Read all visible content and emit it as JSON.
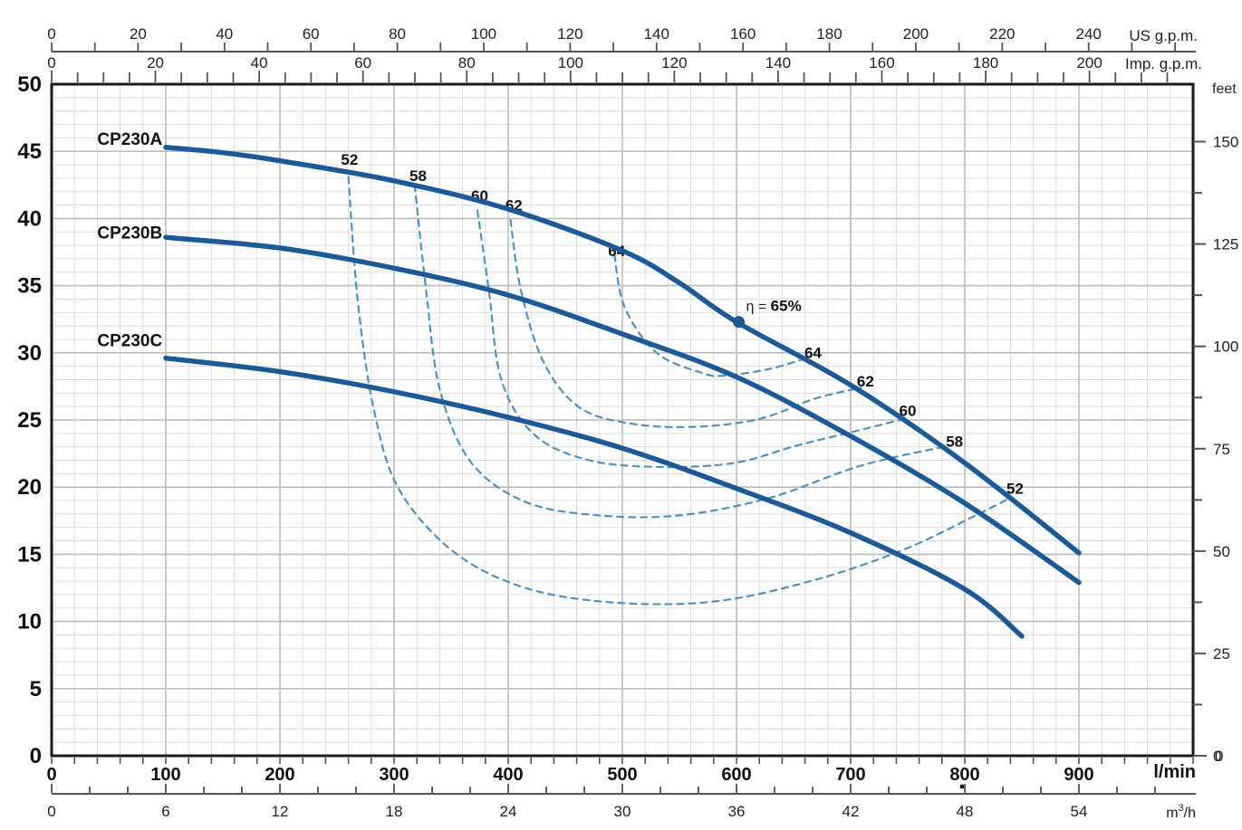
{
  "chart_data": {
    "type": "line",
    "description": "Pump performance curves: head vs flow with iso-efficiency contours",
    "x_axes": {
      "us_gpm": {
        "unit_label": "US g.p.m.",
        "tick_labels": [
          0,
          20,
          40,
          60,
          80,
          100,
          120,
          140,
          160,
          180,
          200,
          220,
          240
        ],
        "minor_step": 10
      },
      "imp_gpm": {
        "unit_label": "Imp. g.p.m.",
        "tick_labels": [
          0,
          20,
          40,
          60,
          80,
          100,
          120,
          140,
          160,
          180,
          200
        ],
        "minor_step": 5
      },
      "l_min": {
        "unit_label": "l/min",
        "tick_labels": [
          0,
          100,
          200,
          300,
          400,
          500,
          600,
          700,
          800,
          900
        ],
        "minor_step": 20,
        "range": [
          0,
          1000
        ]
      },
      "m3_h": {
        "unit_label_parts": [
          "m",
          "3",
          "/h"
        ],
        "tick_labels": [
          0,
          6,
          12,
          18,
          24,
          30,
          36,
          42,
          48,
          54
        ],
        "minor_step": 2
      }
    },
    "y_axes": {
      "head_m": {
        "tick_labels": [
          50,
          45,
          40,
          35,
          30,
          25,
          20,
          15,
          10,
          5,
          0
        ],
        "range": [
          0,
          50
        ]
      },
      "feet": {
        "unit_label": "feet",
        "tick_labels": [
          150,
          125,
          100,
          75,
          50,
          25,
          0
        ],
        "minor_step": 12.5
      }
    },
    "series": [
      {
        "name": "CP230A",
        "label_anchor_qh": [
          97,
          45.5
        ],
        "points": [
          [
            100,
            45.3
          ],
          [
            150,
            44.9
          ],
          [
            200,
            44.3
          ],
          [
            300,
            42.8
          ],
          [
            400,
            40.7
          ],
          [
            500,
            37.6
          ],
          [
            550,
            35.2
          ],
          [
            600,
            32.3
          ],
          [
            700,
            27.6
          ],
          [
            800,
            21.8
          ],
          [
            900,
            15.1
          ]
        ]
      },
      {
        "name": "CP230B",
        "label_anchor_qh": [
          97,
          38.5
        ],
        "points": [
          [
            100,
            38.6
          ],
          [
            200,
            37.8
          ],
          [
            300,
            36.3
          ],
          [
            400,
            34.3
          ],
          [
            500,
            31.4
          ],
          [
            600,
            28.2
          ],
          [
            700,
            23.8
          ],
          [
            800,
            18.8
          ],
          [
            900,
            12.9
          ]
        ]
      },
      {
        "name": "CP230C",
        "label_anchor_qh": [
          97,
          30.5
        ],
        "points": [
          [
            100,
            29.6
          ],
          [
            200,
            28.6
          ],
          [
            300,
            27.1
          ],
          [
            400,
            25.2
          ],
          [
            500,
            22.9
          ],
          [
            600,
            19.9
          ],
          [
            700,
            16.6
          ],
          [
            800,
            12.4
          ],
          [
            850,
            8.9
          ]
        ]
      }
    ],
    "efficiency_contours": [
      {
        "value": 52,
        "label_start_qh": [
          261,
          44.0
        ],
        "label_end_qh": [
          844,
          19.5
        ],
        "points": [
          [
            260,
            43.1
          ],
          [
            268,
            34.0
          ],
          [
            282,
            25.9
          ],
          [
            304,
            19.9
          ],
          [
            352,
            15.2
          ],
          [
            415,
            12.5
          ],
          [
            494,
            11.4
          ],
          [
            582,
            11.5
          ],
          [
            669,
            13.1
          ],
          [
            748,
            15.4
          ],
          [
            812,
            18.0
          ],
          [
            840,
            19.2
          ]
        ]
      },
      {
        "value": 58,
        "label_start_qh": [
          321,
          42.8
        ],
        "label_end_qh": [
          791,
          23.0
        ],
        "points": [
          [
            318,
            42.5
          ],
          [
            328,
            34.7
          ],
          [
            340,
            27.3
          ],
          [
            367,
            21.9
          ],
          [
            415,
            18.9
          ],
          [
            479,
            17.9
          ],
          [
            550,
            17.9
          ],
          [
            629,
            19.2
          ],
          [
            709,
            21.6
          ],
          [
            787,
            23.1
          ]
        ]
      },
      {
        "value": 60,
        "label_start_qh": [
          375,
          41.3
        ],
        "label_end_qh": [
          750,
          25.3
        ],
        "points": [
          [
            373,
            40.6
          ],
          [
            383,
            34.7
          ],
          [
            394,
            28.0
          ],
          [
            423,
            23.9
          ],
          [
            471,
            22.0
          ],
          [
            534,
            21.5
          ],
          [
            598,
            21.8
          ],
          [
            653,
            23.1
          ],
          [
            701,
            24.1
          ],
          [
            748,
            25.1
          ]
        ]
      },
      {
        "value": 62,
        "label_start_qh": [
          405,
          40.6
        ],
        "label_end_qh": [
          713,
          27.5
        ],
        "points": [
          [
            402,
            39.9
          ],
          [
            411,
            34.7
          ],
          [
            431,
            29.3
          ],
          [
            463,
            25.9
          ],
          [
            510,
            24.7
          ],
          [
            566,
            24.5
          ],
          [
            621,
            25.1
          ],
          [
            669,
            26.6
          ],
          [
            709,
            27.4
          ]
        ]
      },
      {
        "value": 64,
        "label_start_qh": [
          495,
          37.2
        ],
        "label_end_qh": [
          667,
          29.6
        ],
        "points": [
          [
            493,
            37.3
          ],
          [
            502,
            33.4
          ],
          [
            530,
            30.0
          ],
          [
            570,
            28.5
          ],
          [
            590,
            28.3
          ],
          [
            629,
            28.8
          ],
          [
            661,
            29.6
          ]
        ]
      }
    ],
    "best_efficiency_point": {
      "label_prefix": "η = ",
      "label_value": "65%",
      "q_lmin": 602,
      "head_m": 32.3
    },
    "colors": {
      "curve": "#1a5a98",
      "contour": "#4c92c3",
      "grid_minor": "#dcdcdc",
      "grid_major": "#bdbdbd",
      "border": "#1a1a1a",
      "axis_line": "#555555",
      "text_dark": "#111111",
      "text_normal": "#222222"
    },
    "layout_hints": {
      "grid": true,
      "legend": "curve labels inline at left ends"
    }
  }
}
